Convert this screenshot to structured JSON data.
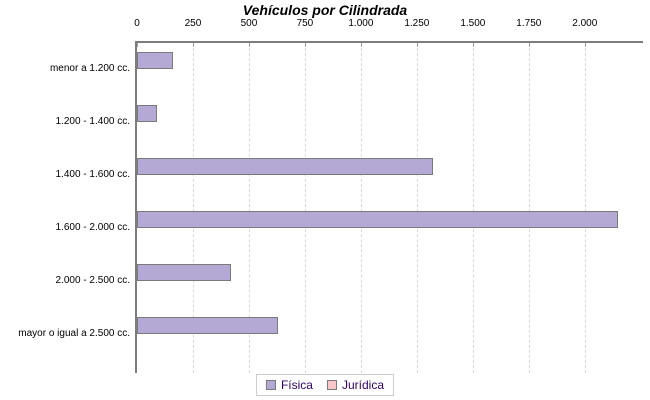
{
  "chart_data": {
    "type": "bar",
    "orientation": "horizontal",
    "title": "Vehículos por Cilindrada",
    "categories": [
      "menor a 1.200 cc.",
      "1.200 - 1.400 cc.",
      "1.400 - 1.600 cc.",
      "1.600 - 2.000 cc.",
      "2.000 - 2.500 cc.",
      "mayor o igual a 2.500 cc."
    ],
    "series": [
      {
        "name": "Física",
        "color": "#b4a8d5",
        "values": [
          160,
          90,
          1320,
          2150,
          420,
          630
        ]
      },
      {
        "name": "Jurídica",
        "color": "#f9c7ca",
        "values": [
          0,
          0,
          0,
          0,
          0,
          0
        ]
      }
    ],
    "x_ticks": [
      {
        "value": 0,
        "label": "0"
      },
      {
        "value": 250,
        "label": "250"
      },
      {
        "value": 500,
        "label": "500"
      },
      {
        "value": 750,
        "label": "750"
      },
      {
        "value": 1000,
        "label": "1.000"
      },
      {
        "value": 1250,
        "label": "1.250"
      },
      {
        "value": 1500,
        "label": "1.500"
      },
      {
        "value": 1750,
        "label": "1.750"
      },
      {
        "value": 2000,
        "label": "2.000"
      }
    ],
    "xlim": [
      0,
      2260
    ],
    "grid": "vertical-dashed",
    "legend_position": "bottom",
    "legend": [
      {
        "label": "Física",
        "color": "#b4a8d5"
      },
      {
        "label": "Jurídica",
        "color": "#f9c7ca"
      }
    ]
  },
  "colors": {
    "bar_border": "#7a7a7a",
    "axis_line": "#7d7d7d",
    "gridline": "#d9d9d9",
    "legend_text": "#330066",
    "legend_border": "#cccccc",
    "background": "#ffffff"
  }
}
